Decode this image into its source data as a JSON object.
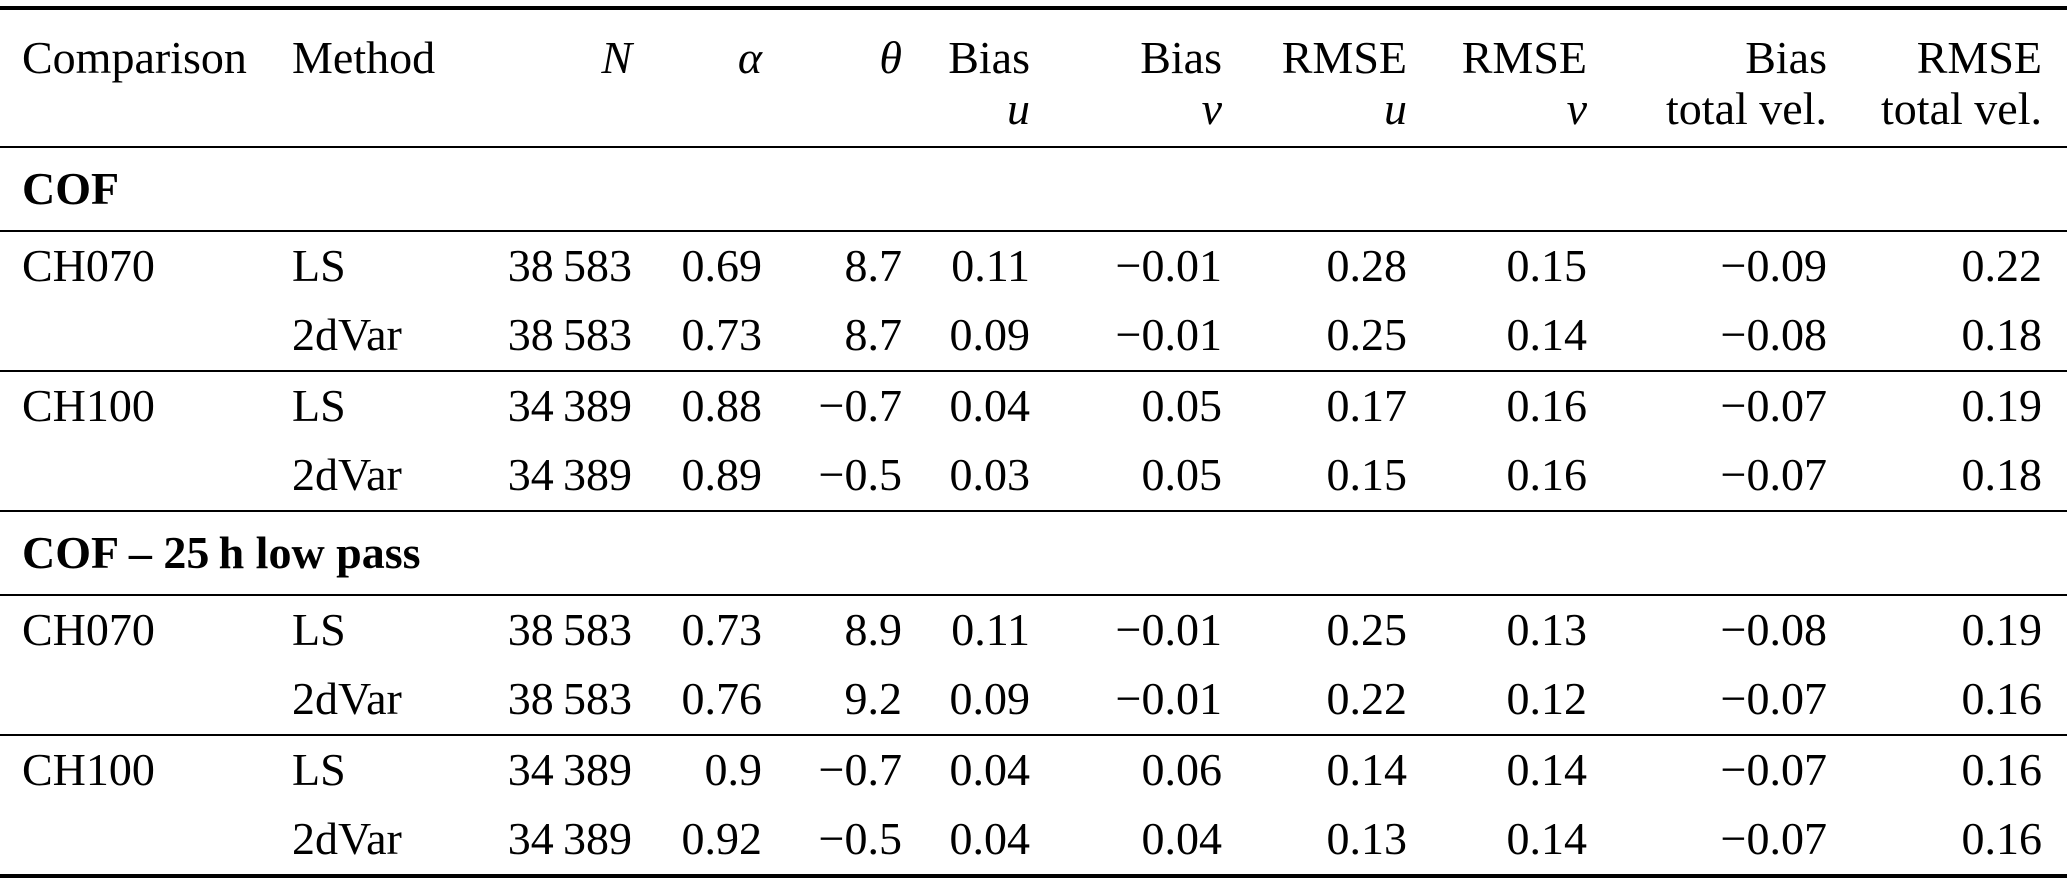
{
  "colors": {
    "background": "#ffffff",
    "text": "#000000",
    "rule": "#000000"
  },
  "table": {
    "columns": [
      {
        "label": "Comparison",
        "sub": ""
      },
      {
        "label": "Method",
        "sub": ""
      },
      {
        "label": "N",
        "sub": ""
      },
      {
        "label": "α",
        "sub": ""
      },
      {
        "label": "θ",
        "sub": ""
      },
      {
        "label": "Bias",
        "sub": "u"
      },
      {
        "label": "Bias",
        "sub": "v"
      },
      {
        "label": "RMSE",
        "sub": "u"
      },
      {
        "label": "RMSE",
        "sub": "v"
      },
      {
        "label": "Bias",
        "sub": "total vel."
      },
      {
        "label": "RMSE",
        "sub": "total vel."
      }
    ],
    "sections": [
      {
        "title": "COF",
        "rows": [
          [
            "CH070",
            "LS",
            "38 583",
            "0.69",
            "8.7",
            "0.11",
            "−0.01",
            "0.28",
            "0.15",
            "−0.09",
            "0.22"
          ],
          [
            "",
            "2dVar",
            "38 583",
            "0.73",
            "8.7",
            "0.09",
            "−0.01",
            "0.25",
            "0.14",
            "−0.08",
            "0.18"
          ],
          [
            "CH100",
            "LS",
            "34 389",
            "0.88",
            "−0.7",
            "0.04",
            "0.05",
            "0.17",
            "0.16",
            "−0.07",
            "0.19"
          ],
          [
            "",
            "2dVar",
            "34 389",
            "0.89",
            "−0.5",
            "0.03",
            "0.05",
            "0.15",
            "0.16",
            "−0.07",
            "0.18"
          ]
        ]
      },
      {
        "title": "COF – 25 h low pass",
        "rows": [
          [
            "CH070",
            "LS",
            "38 583",
            "0.73",
            "8.9",
            "0.11",
            "−0.01",
            "0.25",
            "0.13",
            "−0.08",
            "0.19"
          ],
          [
            "",
            "2dVar",
            "38 583",
            "0.76",
            "9.2",
            "0.09",
            "−0.01",
            "0.22",
            "0.12",
            "−0.07",
            "0.16"
          ],
          [
            "CH100",
            "LS",
            "34 389",
            "0.9",
            "−0.7",
            "0.04",
            "0.06",
            "0.14",
            "0.14",
            "−0.07",
            "0.16"
          ],
          [
            "",
            "2dVar",
            "34 389",
            "0.92",
            "−0.5",
            "0.04",
            "0.04",
            "0.13",
            "0.14",
            "−0.07",
            "0.16"
          ]
        ]
      }
    ]
  }
}
